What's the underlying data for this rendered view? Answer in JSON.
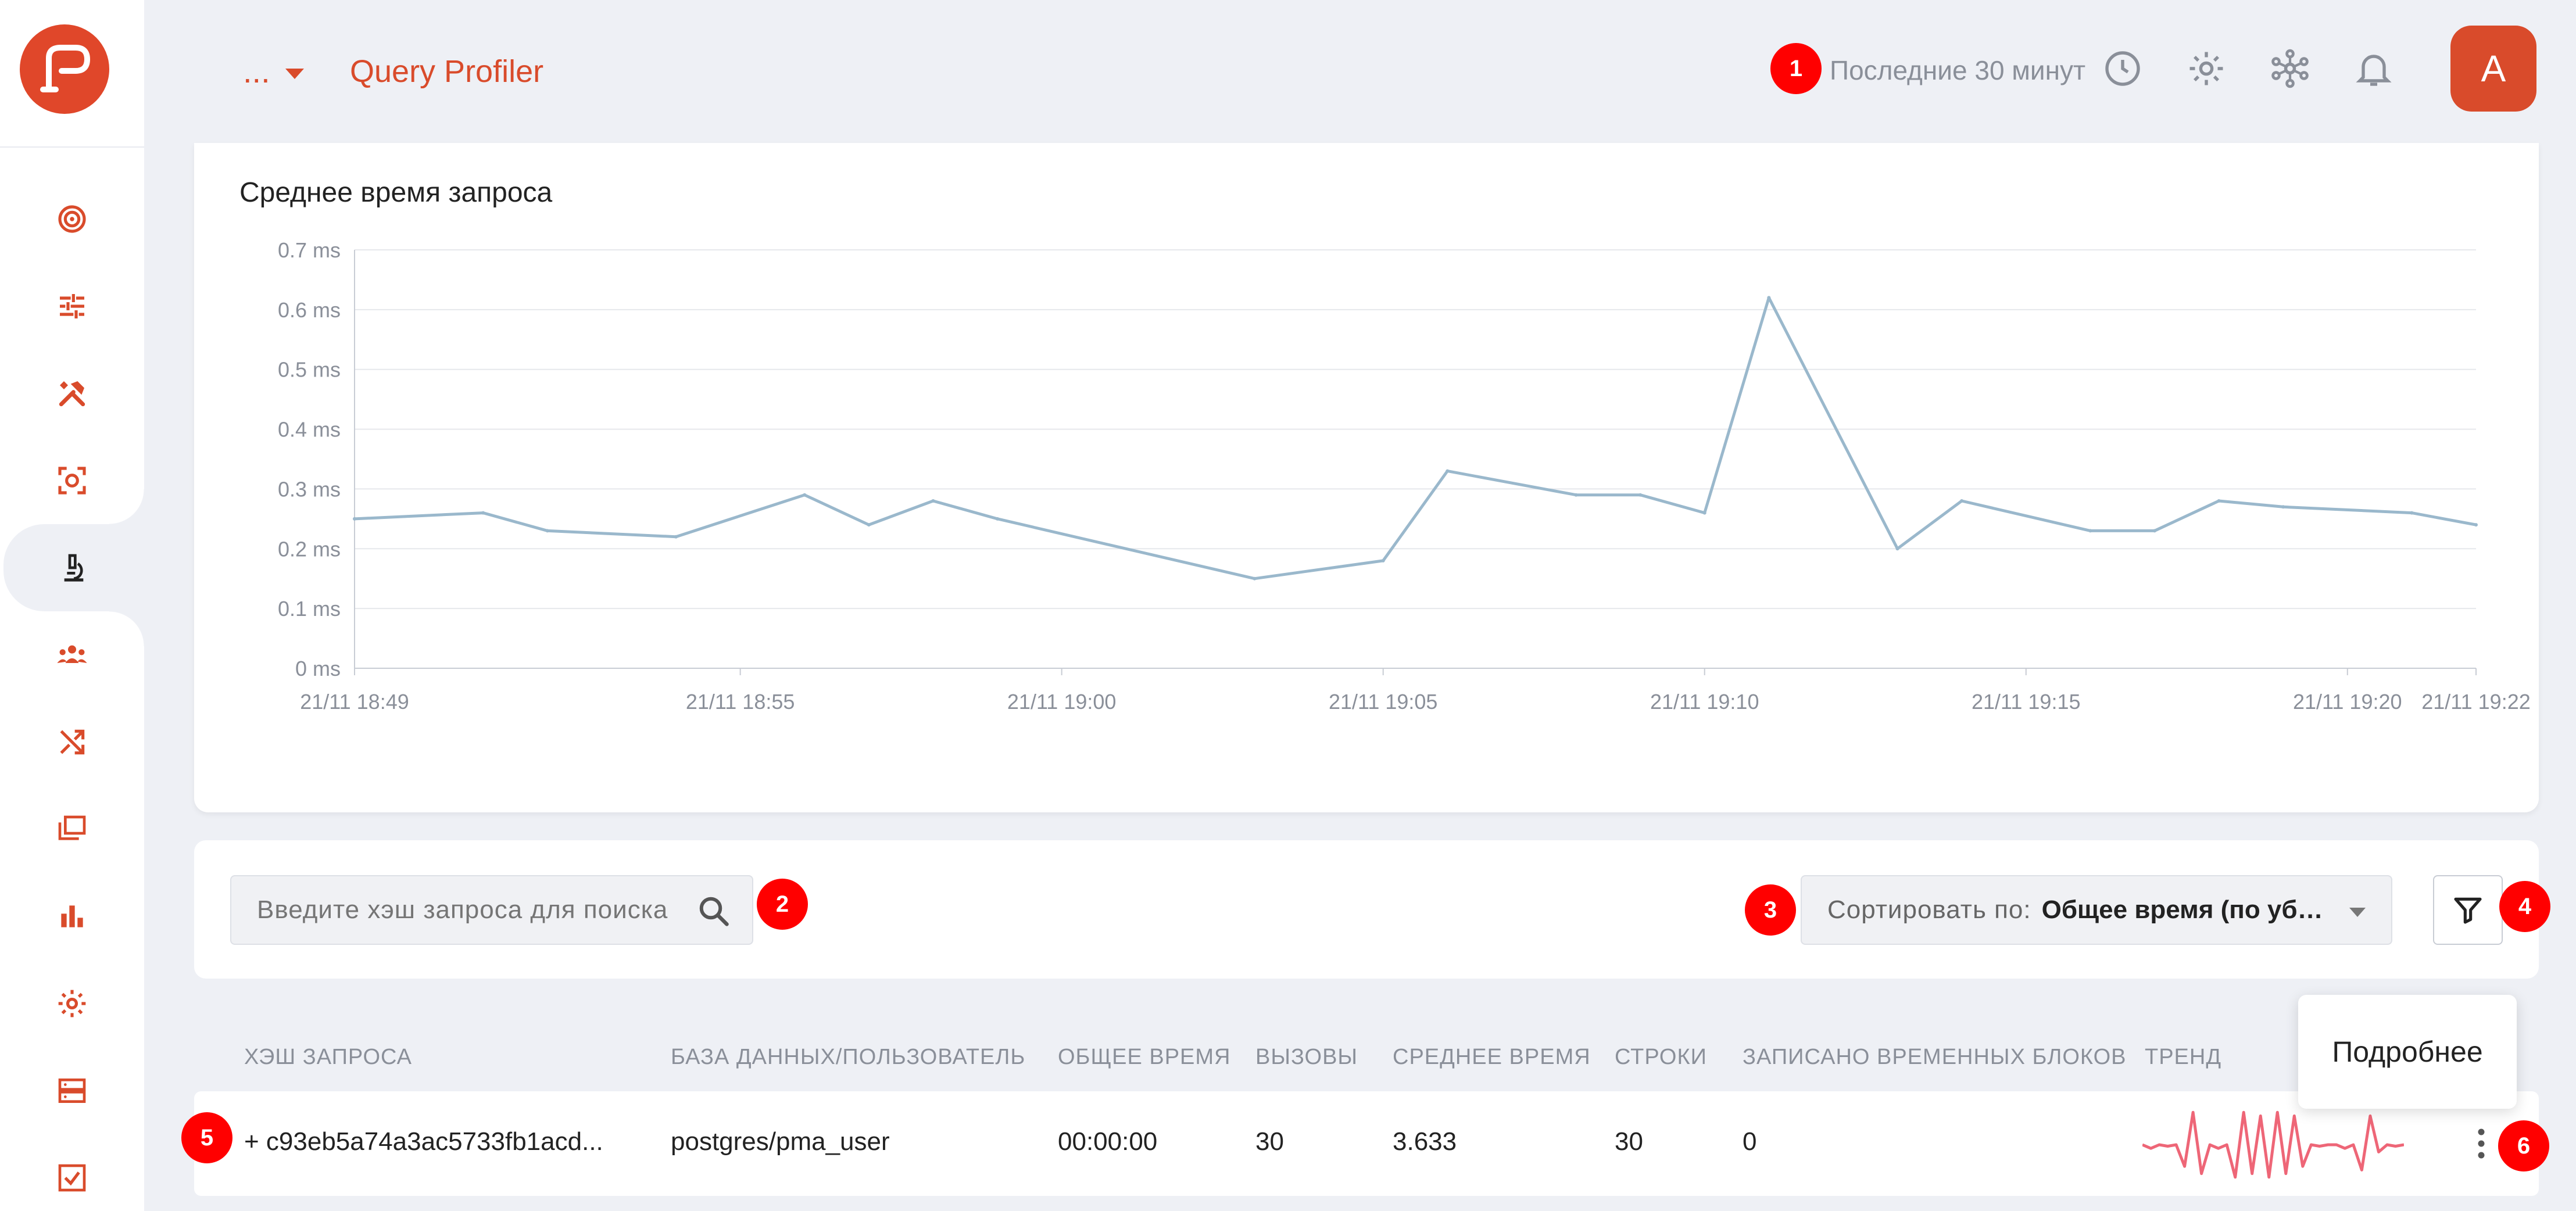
{
  "header": {
    "more_label": "...",
    "title": "Query Profiler",
    "time_range": "Последние 30 минут",
    "avatar_initial": "A",
    "accent_color": "#d94b2b"
  },
  "sidebar": {
    "items": [
      {
        "icon": "target-icon",
        "active": false
      },
      {
        "icon": "sliders-icon",
        "active": false
      },
      {
        "icon": "tools-icon",
        "active": false
      },
      {
        "icon": "scan-icon",
        "active": false
      },
      {
        "icon": "microscope-icon",
        "active": true
      },
      {
        "icon": "users-icon",
        "active": false
      },
      {
        "icon": "shuffle-icon",
        "active": false
      },
      {
        "icon": "folders-icon",
        "active": false
      },
      {
        "icon": "bar-chart-icon",
        "active": false
      },
      {
        "icon": "gear-icon",
        "active": false
      },
      {
        "icon": "server-icon",
        "active": false
      },
      {
        "icon": "checkbox-icon",
        "active": false
      }
    ]
  },
  "badges": [
    "1",
    "2",
    "3",
    "4",
    "5",
    "6"
  ],
  "chart_data": {
    "type": "line",
    "title": "Среднее время запроса",
    "y_ticks": [
      "0 ms",
      "0.1 ms",
      "0.2 ms",
      "0.3 ms",
      "0.4 ms",
      "0.5 ms",
      "0.6 ms",
      "0.7 ms"
    ],
    "ylim": [
      0,
      0.7
    ],
    "x_ticks": [
      {
        "label": "21/11 18:49",
        "t": 0
      },
      {
        "label": "21/11 18:55",
        "t": 6
      },
      {
        "label": "21/11 19:00",
        "t": 11
      },
      {
        "label": "21/11 19:05",
        "t": 16
      },
      {
        "label": "21/11 19:10",
        "t": 21
      },
      {
        "label": "21/11 19:15",
        "t": 26
      },
      {
        "label": "21/11 19:20",
        "t": 31
      },
      {
        "label": "21/11 19:22",
        "t": 33
      }
    ],
    "x": [
      0,
      2,
      3,
      5,
      7,
      8,
      9,
      10,
      14,
      16,
      17,
      19,
      20,
      21,
      22,
      24,
      25,
      27,
      28,
      29,
      30,
      32,
      33
    ],
    "values": [
      0.25,
      0.26,
      0.23,
      0.22,
      0.29,
      0.24,
      0.28,
      0.25,
      0.15,
      0.18,
      0.33,
      0.29,
      0.29,
      0.26,
      0.62,
      0.2,
      0.28,
      0.23,
      0.23,
      0.28,
      0.27,
      0.26,
      0.24
    ],
    "line_color": "#9ab8cc",
    "grid": true
  },
  "search": {
    "placeholder": "Введите хэш запроса для поиска"
  },
  "sort": {
    "label": "Сортировать по:",
    "value": "Общее время (по убыванию)"
  },
  "table": {
    "columns": [
      "ХЭШ ЗАПРОСА",
      "БАЗА ДАННЫХ/ПОЛЬЗОВАТЕЛЬ",
      "ОБЩЕЕ ВРЕМЯ",
      "ВЫЗОВЫ",
      "СРЕДНЕЕ ВРЕМЯ",
      "СТРОКИ",
      "ЗАПИСАНО ВРЕМЕННЫХ БЛОКОВ",
      "ТРЕНД"
    ],
    "rows": [
      {
        "hash": "+ c93eb5a74a3ac5733fb1acd...",
        "db_user": "postgres/pma_user",
        "total_time": "00:00:00",
        "calls": "30",
        "avg_time": "3.633",
        "rows": "30",
        "temp_blocks": "0",
        "trend": [
          0.5,
          0.45,
          0.5,
          0.48,
          0.5,
          0.2,
          0.95,
          0.1,
          0.5,
          0.45,
          0.5,
          0.05,
          0.95,
          0.1,
          0.9,
          0.05,
          0.95,
          0.1,
          0.9,
          0.2,
          0.5,
          0.48,
          0.5,
          0.5,
          0.45,
          0.5,
          0.15,
          0.9,
          0.4,
          0.5,
          0.48,
          0.5
        ]
      }
    ],
    "trend_color": "#ee6677"
  },
  "tooltip": {
    "text": "Подробнее"
  }
}
